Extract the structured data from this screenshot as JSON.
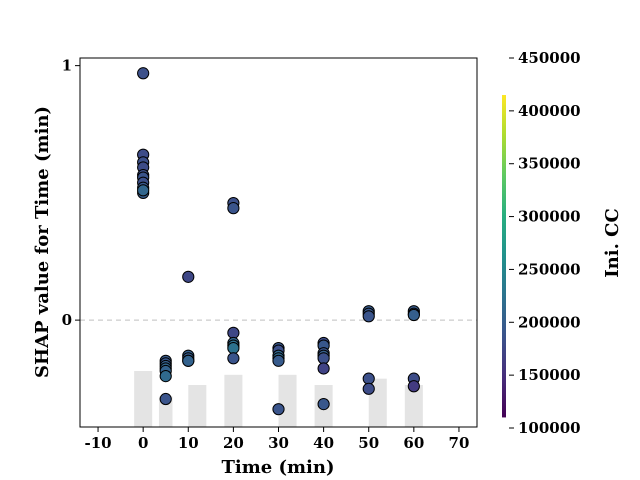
{
  "chart_data": {
    "type": "scatter",
    "title": "",
    "xlabel": "Time (min)",
    "ylabel": "SHAP value for Time (min)",
    "xlim": [
      -14,
      74
    ],
    "ylim": [
      -0.42,
      1.03
    ],
    "x_ticks": [
      -10,
      0,
      10,
      20,
      30,
      40,
      50,
      60,
      70
    ],
    "x_tick_labels": [
      "-10",
      "0",
      "10",
      "20",
      "30",
      "40",
      "50",
      "60",
      "70"
    ],
    "y_ticks": [
      0,
      1
    ],
    "y_tick_labels": [
      "0",
      "1"
    ],
    "zero_line": "dashed",
    "colorbar": {
      "label": "Ini. CC",
      "colormap": "viridis",
      "range": [
        100000,
        450000
      ],
      "filled_range": [
        110000,
        415000
      ],
      "ticks": [
        100000,
        150000,
        200000,
        250000,
        300000,
        350000,
        400000,
        450000
      ],
      "tick_labels": [
        "100000",
        "150000",
        "200000",
        "250000",
        "300000",
        "350000",
        "400000",
        "450000"
      ]
    },
    "histogram": {
      "color": "#e4e4e4",
      "bars": [
        {
          "x": 0,
          "width": 4,
          "height": 0.22
        },
        {
          "x": 5,
          "width": 3,
          "height": 0.12
        },
        {
          "x": 12,
          "width": 4,
          "height": 0.165
        },
        {
          "x": 20,
          "width": 4,
          "height": 0.205
        },
        {
          "x": 32,
          "width": 4,
          "height": 0.205
        },
        {
          "x": 40,
          "width": 4,
          "height": 0.165
        },
        {
          "x": 52,
          "width": 4,
          "height": 0.19
        },
        {
          "x": 60,
          "width": 4,
          "height": 0.165
        }
      ]
    },
    "points": [
      {
        "x": 0,
        "y": 0.97,
        "c": 185000
      },
      {
        "x": 0,
        "y": 0.65,
        "c": 180000
      },
      {
        "x": 0,
        "y": 0.62,
        "c": 185000
      },
      {
        "x": 0,
        "y": 0.6,
        "c": 180000
      },
      {
        "x": 0,
        "y": 0.57,
        "c": 185000
      },
      {
        "x": 0,
        "y": 0.56,
        "c": 190000
      },
      {
        "x": 0,
        "y": 0.54,
        "c": 185000
      },
      {
        "x": 0,
        "y": 0.52,
        "c": 195000
      },
      {
        "x": 0,
        "y": 0.5,
        "c": 200000
      },
      {
        "x": 0,
        "y": 0.51,
        "c": 215000
      },
      {
        "x": 5,
        "y": -0.16,
        "c": 200000
      },
      {
        "x": 5,
        "y": -0.17,
        "c": 195000
      },
      {
        "x": 5,
        "y": -0.18,
        "c": 205000
      },
      {
        "x": 5,
        "y": -0.19,
        "c": 215000
      },
      {
        "x": 5,
        "y": -0.2,
        "c": 210000
      },
      {
        "x": 5,
        "y": -0.22,
        "c": 220000
      },
      {
        "x": 5,
        "y": -0.31,
        "c": 190000
      },
      {
        "x": 10,
        "y": 0.17,
        "c": 175000
      },
      {
        "x": 10,
        "y": -0.14,
        "c": 205000
      },
      {
        "x": 10,
        "y": -0.15,
        "c": 200000
      },
      {
        "x": 10,
        "y": -0.16,
        "c": 225000
      },
      {
        "x": 10,
        "y": -0.16,
        "c": 210000
      },
      {
        "x": 20,
        "y": 0.46,
        "c": 185000
      },
      {
        "x": 20,
        "y": 0.44,
        "c": 190000
      },
      {
        "x": 20,
        "y": -0.05,
        "c": 175000
      },
      {
        "x": 20,
        "y": -0.09,
        "c": 215000
      },
      {
        "x": 20,
        "y": -0.1,
        "c": 225000
      },
      {
        "x": 20,
        "y": -0.11,
        "c": 230000
      },
      {
        "x": 20,
        "y": -0.15,
        "c": 190000
      },
      {
        "x": 30,
        "y": -0.11,
        "c": 195000
      },
      {
        "x": 30,
        "y": -0.12,
        "c": 185000
      },
      {
        "x": 30,
        "y": -0.14,
        "c": 215000
      },
      {
        "x": 30,
        "y": -0.15,
        "c": 220000
      },
      {
        "x": 30,
        "y": -0.16,
        "c": 200000
      },
      {
        "x": 30,
        "y": -0.35,
        "c": 190000
      },
      {
        "x": 40,
        "y": -0.09,
        "c": 180000
      },
      {
        "x": 40,
        "y": -0.1,
        "c": 195000
      },
      {
        "x": 40,
        "y": -0.13,
        "c": 190000
      },
      {
        "x": 40,
        "y": -0.14,
        "c": 205000
      },
      {
        "x": 40,
        "y": -0.15,
        "c": 185000
      },
      {
        "x": 40,
        "y": -0.19,
        "c": 170000
      },
      {
        "x": 40,
        "y": -0.33,
        "c": 195000
      },
      {
        "x": 50,
        "y": 0.035,
        "c": 200000
      },
      {
        "x": 50,
        "y": 0.025,
        "c": 195000
      },
      {
        "x": 50,
        "y": 0.015,
        "c": 190000
      },
      {
        "x": 50,
        "y": -0.23,
        "c": 185000
      },
      {
        "x": 50,
        "y": -0.27,
        "c": 180000
      },
      {
        "x": 60,
        "y": 0.035,
        "c": 200000
      },
      {
        "x": 60,
        "y": 0.025,
        "c": 190000
      },
      {
        "x": 60,
        "y": 0.02,
        "c": 205000
      },
      {
        "x": 60,
        "y": -0.23,
        "c": 180000
      },
      {
        "x": 60,
        "y": -0.26,
        "c": 160000
      }
    ]
  }
}
